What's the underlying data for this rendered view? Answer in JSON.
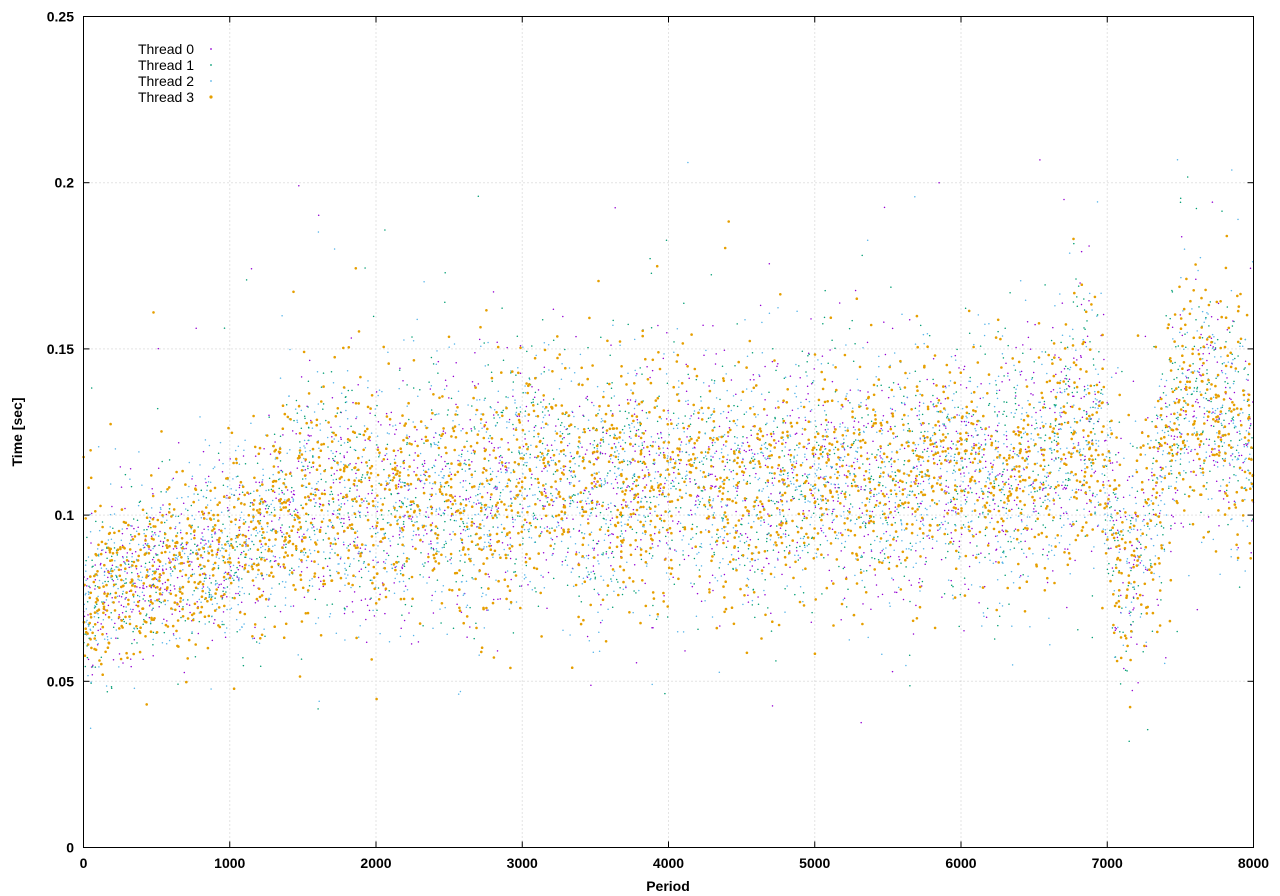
{
  "chart_data": {
    "type": "scatter",
    "title": "",
    "xlabel": "Period",
    "ylabel": "Time [sec]",
    "xlim": [
      0,
      8000
    ],
    "ylim": [
      0,
      0.25
    ],
    "xticks": [
      0,
      1000,
      2000,
      3000,
      4000,
      5000,
      6000,
      7000,
      8000
    ],
    "yticks": [
      0,
      0.05,
      0.1,
      0.15,
      0.2,
      0.25
    ],
    "xtick_labels": [
      "0",
      "1000",
      "2000",
      "3000",
      "4000",
      "5000",
      "6000",
      "7000",
      "8000"
    ],
    "ytick_labels": [
      "0",
      "0.05",
      "0.1",
      "0.15",
      "0.2",
      "0.25"
    ],
    "grid": true,
    "legend_position": "top-left",
    "trend": {
      "x": [
        0,
        100,
        300,
        600,
        900,
        1200,
        1400,
        1500,
        2000,
        2500,
        2900,
        3000,
        3500,
        4000,
        4500,
        5000,
        5500,
        6000,
        6500,
        6800,
        6950,
        7050,
        7200,
        7350,
        7500,
        7700,
        8000
      ],
      "y": [
        0.07,
        0.077,
        0.081,
        0.085,
        0.088,
        0.092,
        0.102,
        0.105,
        0.102,
        0.106,
        0.104,
        0.112,
        0.107,
        0.11,
        0.108,
        0.112,
        0.11,
        0.112,
        0.113,
        0.125,
        0.122,
        0.09,
        0.085,
        0.11,
        0.13,
        0.135,
        0.12
      ]
    },
    "series": [
      {
        "name": "Thread 0",
        "color": "#9400d3",
        "marker": "dot-small",
        "points_per_series": 2000
      },
      {
        "name": "Thread 1",
        "color": "#009e73",
        "marker": "dot-small",
        "points_per_series": 2000
      },
      {
        "name": "Thread 2",
        "color": "#56b4e9",
        "marker": "dot-small",
        "points_per_series": 2600
      },
      {
        "name": "Thread 3",
        "color": "#e69f00",
        "marker": "dot-large",
        "points_per_series": 2800
      }
    ]
  }
}
